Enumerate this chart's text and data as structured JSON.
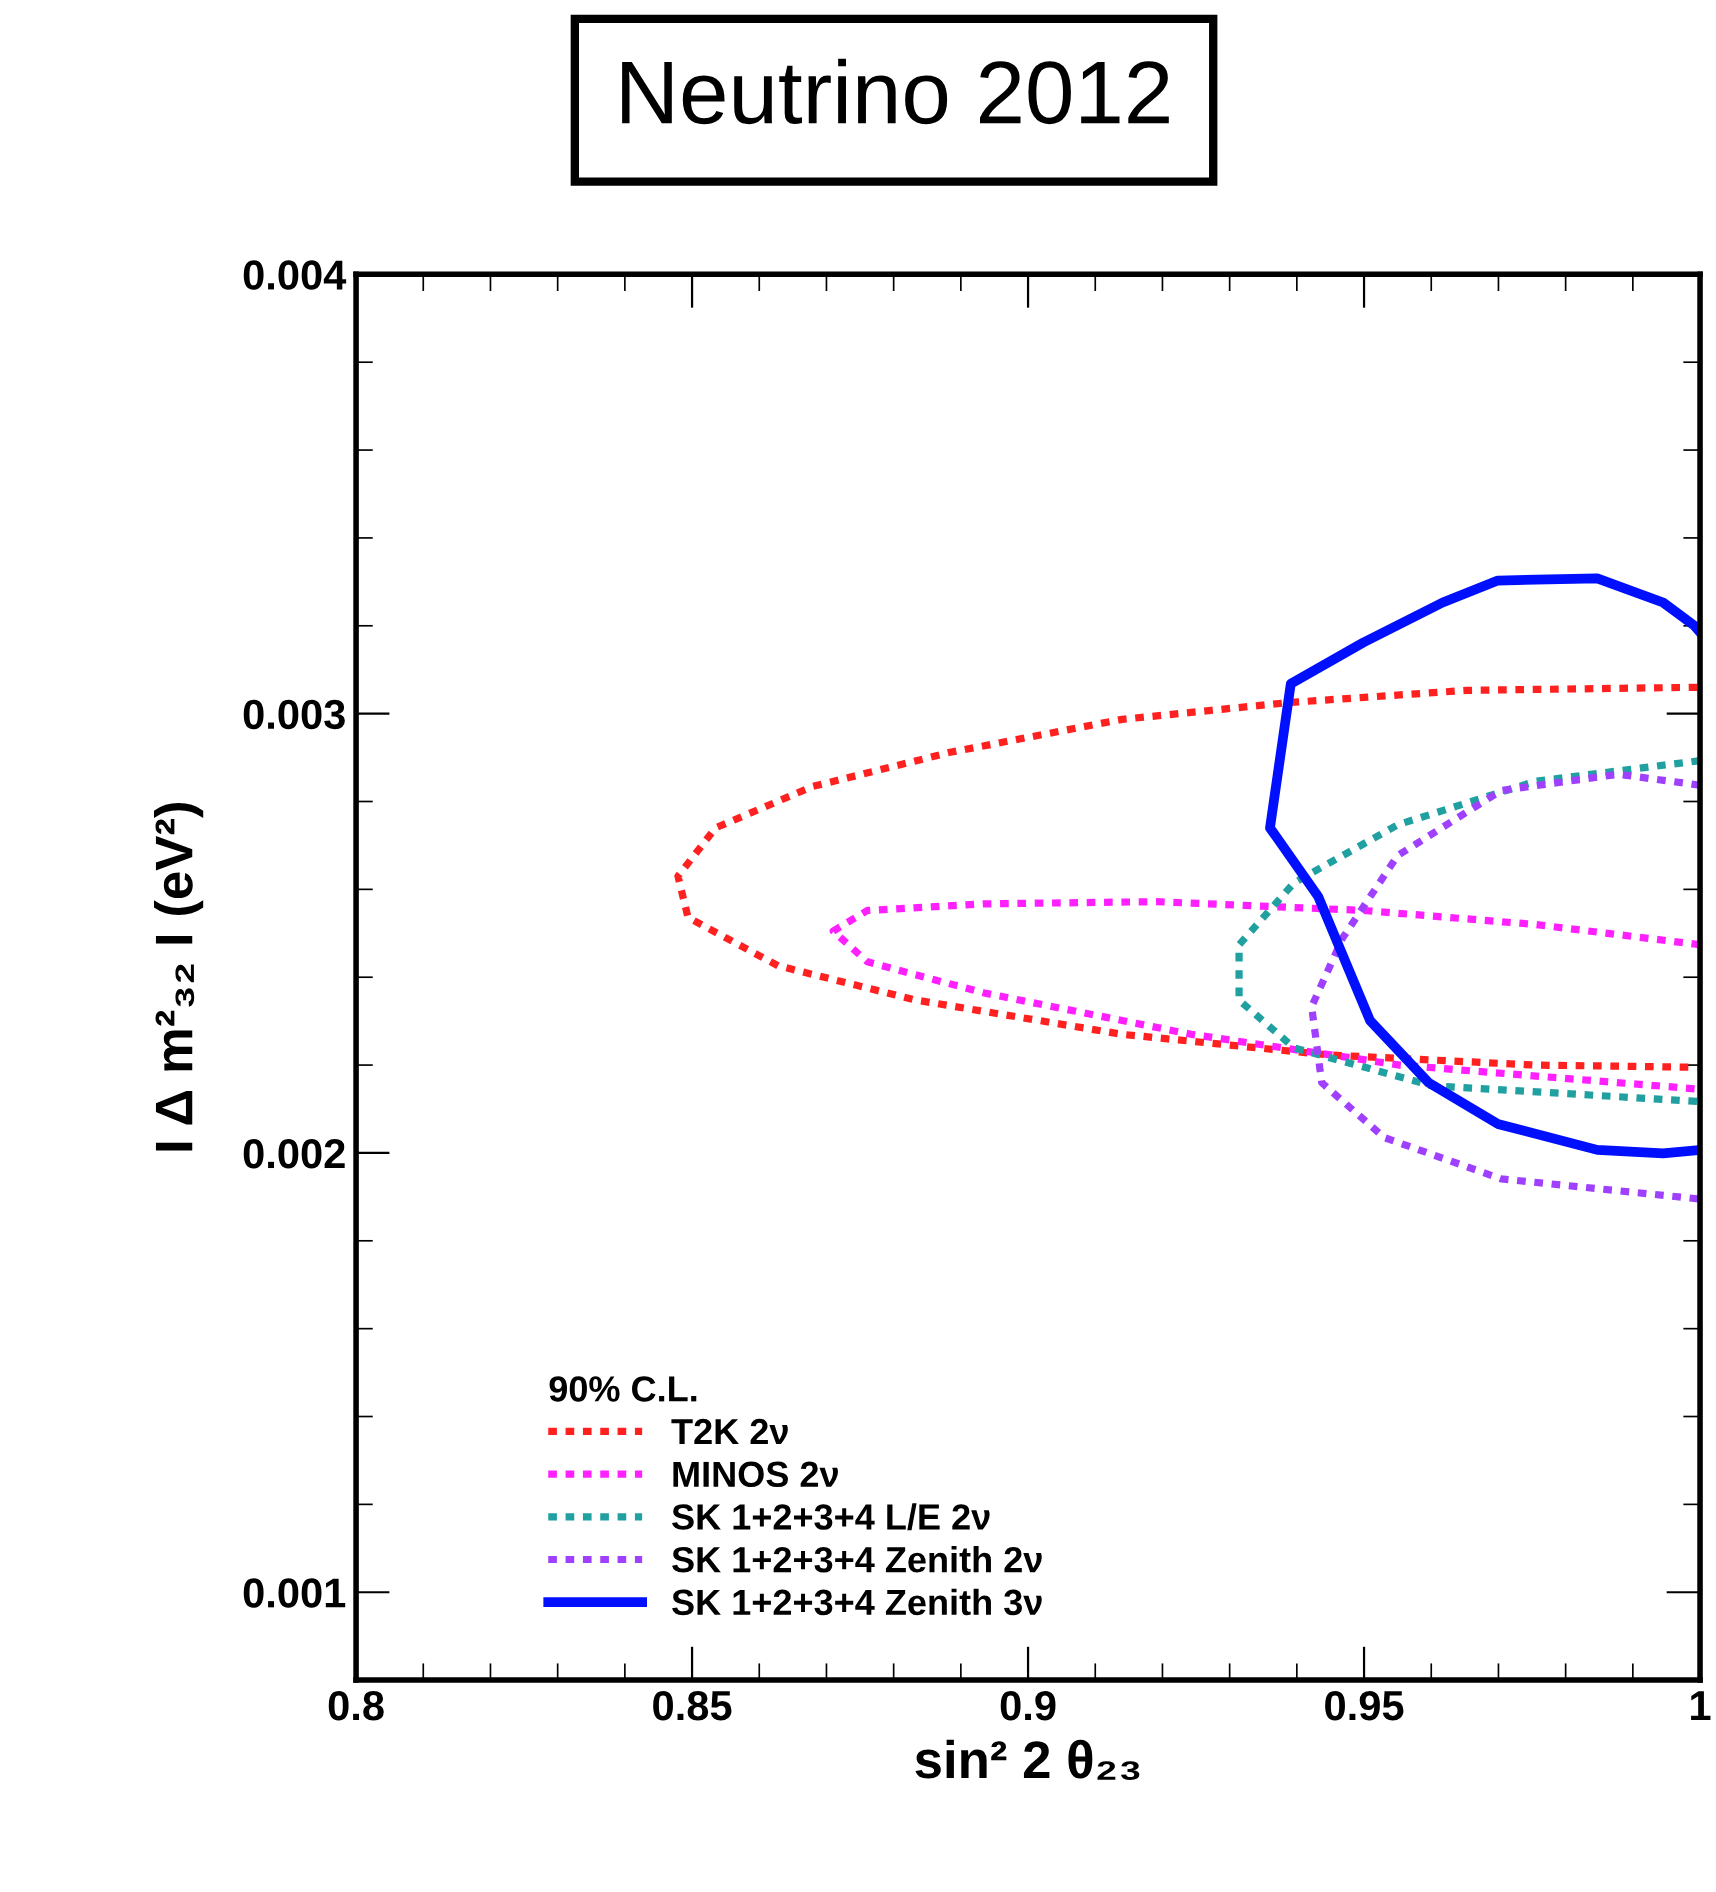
{
  "chart_data": {
    "type": "line",
    "title": "Neutrino 2012",
    "xlabel": "sin² 2 θ₂₃",
    "ylabel": "I Δ m²₃₂ I (eV²)",
    "legend_title": "90% C.L.",
    "legend": "bottom left",
    "marker": "none",
    "grid": false,
    "xlim": [
      0.8,
      1.0
    ],
    "xticks": [
      0.8,
      0.85,
      0.9,
      0.95,
      1
    ],
    "ylim": [
      0.0008,
      0.004
    ],
    "yticks": [
      0.001,
      0.002,
      0.003,
      0.004
    ],
    "series": [
      {
        "name": "T2K 2ν",
        "color": "#ff2020",
        "line_style": "dotted",
        "x": [
          0.9996,
          0.9652,
          0.9386,
          0.914,
          0.8884,
          0.8679,
          0.8535,
          0.8479,
          0.8494,
          0.8628,
          0.8833,
          0.914,
          0.9448,
          0.9755,
          0.9996
        ],
        "values": [
          0.00306,
          0.003053,
          0.003025,
          0.002987,
          0.002912,
          0.002834,
          0.00274,
          0.00263,
          0.002536,
          0.002426,
          0.002348,
          0.00227,
          0.002223,
          0.0022,
          0.002195
        ]
      },
      {
        "name": "MINOS 2ν",
        "color": "#ff20ff",
        "line_style": "dotted",
        "x": [
          1.0,
          0.9755,
          0.9499,
          0.9191,
          0.8935,
          0.8761,
          0.871,
          0.8761,
          0.8935,
          0.9243,
          0.9553,
          1.0
        ],
        "values": [
          0.002474,
          0.00252,
          0.002552,
          0.002572,
          0.002567,
          0.002552,
          0.002505,
          0.002435,
          0.002364,
          0.00227,
          0.0022,
          0.002145
        ]
      },
      {
        "name": "SK 1+2+3+4 L/E 2ν",
        "color": "#20a0a0",
        "line_style": "dotted",
        "x": [
          1.0,
          0.9755,
          0.955,
          0.9396,
          0.9314,
          0.9314,
          0.9396,
          0.9601,
          1.0
        ],
        "values": [
          0.002893,
          0.002846,
          0.002747,
          0.002615,
          0.002474,
          0.002348,
          0.002239,
          0.002153,
          0.002117
        ]
      },
      {
        "name": "SK 1+2+3+4 Zenith 2ν",
        "color": "#a040ff",
        "line_style": "dotted",
        "x": [
          1.0,
          0.9878,
          0.9704,
          0.955,
          0.9468,
          0.9422,
          0.9437,
          0.953,
          0.9704,
          1.0
        ],
        "values": [
          0.002837,
          0.002862,
          0.002825,
          0.002677,
          0.002489,
          0.002333,
          0.00216,
          0.002035,
          0.001941,
          0.001895
        ]
      },
      {
        "name": "SK 1+2+3+4 Zenith 3ν",
        "color": "#0010ff",
        "line_style": "solid",
        "x": [
          1.0,
          0.9991,
          0.9945,
          0.9847,
          0.9699,
          0.9617,
          0.9499,
          0.9391,
          0.936,
          0.9432,
          0.9509,
          0.9596,
          0.9699,
          0.9847,
          0.9945,
          1.0
        ],
        "values": [
          0.003185,
          0.003201,
          0.003253,
          0.003308,
          0.003303,
          0.003253,
          0.003162,
          0.003068,
          0.00274,
          0.002583,
          0.002301,
          0.00216,
          0.002066,
          0.002007,
          0.001999,
          0.002007
        ]
      }
    ]
  }
}
